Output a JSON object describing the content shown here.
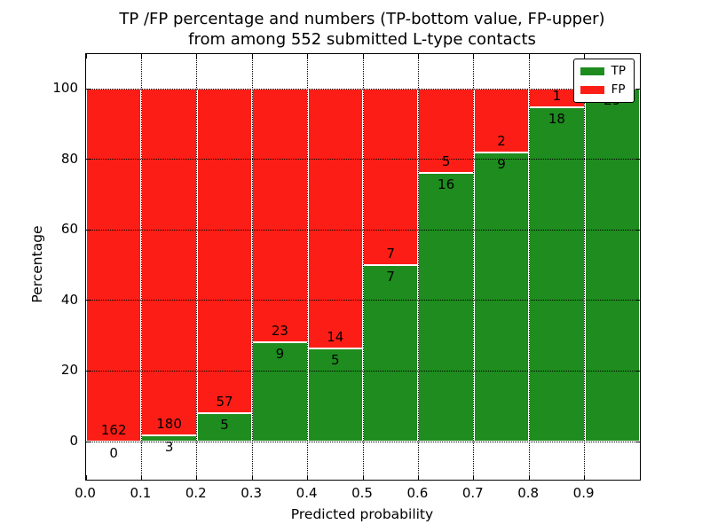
{
  "title": {
    "line1": "TP /FP percentage and numbers (TP-bottom value, FP-upper)",
    "line2": "from among 552 submitted L-type contacts"
  },
  "axes": {
    "x_label": "Predicted probability",
    "y_label": "Percentage",
    "x_tick_labels": [
      "0.0",
      "0.1",
      "0.2",
      "0.3",
      "0.4",
      "0.5",
      "0.6",
      "0.7",
      "0.8",
      "0.9"
    ],
    "y_tick_labels": [
      "0",
      "20",
      "40",
      "60",
      "80",
      "100"
    ],
    "y_tick_values": [
      0,
      20,
      40,
      60,
      80,
      100
    ]
  },
  "legend": {
    "position": "upper right",
    "items": [
      {
        "label": "TP",
        "color": "#1e8c1e"
      },
      {
        "label": "FP",
        "color": "#fc1e16"
      }
    ]
  },
  "chart_data": {
    "type": "bar",
    "stacked": true,
    "normalized_to_100_percent": true,
    "title": "TP /FP percentage and numbers (TP-bottom value, FP-upper) from among 552 submitted L-type contacts",
    "xlabel": "Predicted probability",
    "ylabel": "Percentage",
    "xlim": [
      0.0,
      1.0
    ],
    "ylim": [
      -11,
      110
    ],
    "bin_width": 0.1,
    "total_contacts": 552,
    "grid": "black dotted, vertical every 0.1, horizontal every 20%",
    "legend_position": "upper right",
    "tp_color": "#1e8c1e",
    "fp_color": "#fc1e16",
    "bins": [
      {
        "range": "0.0-0.1",
        "tp": 0,
        "fp": 162
      },
      {
        "range": "0.1-0.2",
        "tp": 3,
        "fp": 180
      },
      {
        "range": "0.2-0.3",
        "tp": 5,
        "fp": 57
      },
      {
        "range": "0.3-0.4",
        "tp": 9,
        "fp": 23
      },
      {
        "range": "0.4-0.5",
        "tp": 5,
        "fp": 14
      },
      {
        "range": "0.5-0.6",
        "tp": 7,
        "fp": 7
      },
      {
        "range": "0.6-0.7",
        "tp": 16,
        "fp": 5
      },
      {
        "range": "0.7-0.8",
        "tp": 9,
        "fp": 2
      },
      {
        "range": "0.8-0.9",
        "tp": 18,
        "fp": 1
      },
      {
        "range": "0.9-1.0",
        "tp": 29,
        "fp": 0
      }
    ],
    "series": [
      {
        "name": "TP",
        "values": [
          0,
          3,
          5,
          9,
          5,
          7,
          16,
          9,
          18,
          29
        ]
      },
      {
        "name": "FP",
        "values": [
          162,
          180,
          57,
          23,
          14,
          7,
          5,
          2,
          1,
          0
        ]
      }
    ],
    "tp_percent_of_bin": [
      0.0,
      1.6,
      8.1,
      28.1,
      26.3,
      50.0,
      76.2,
      81.8,
      94.7,
      100.0
    ]
  }
}
